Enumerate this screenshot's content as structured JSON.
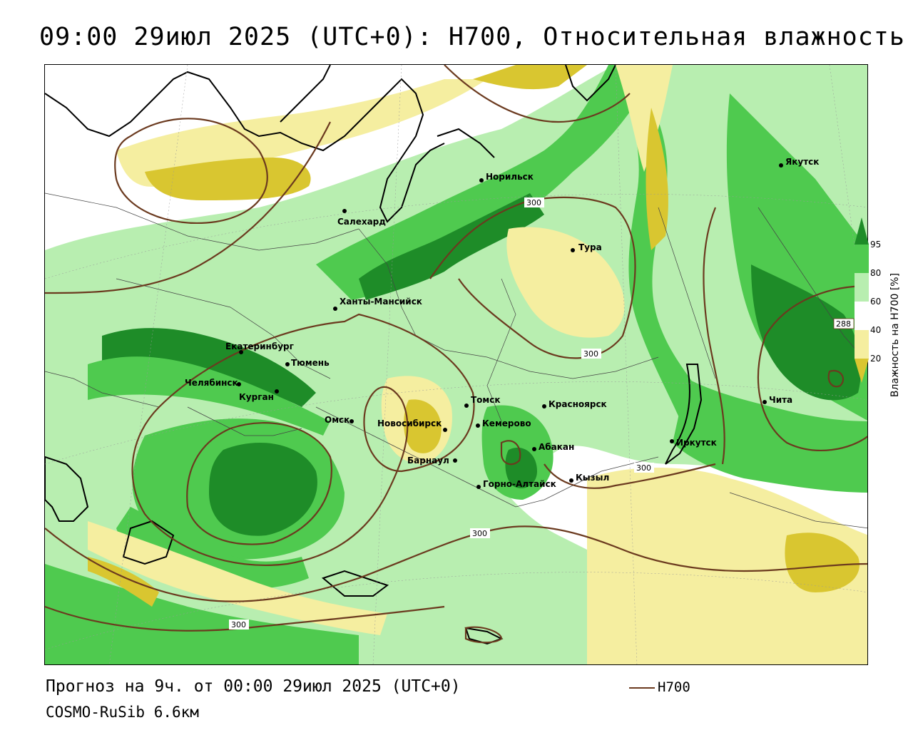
{
  "title": "09:00 29июл 2025 (UTC+0): H700, Относительная влажность",
  "footer": {
    "forecast_line": "Прогноз на 9ч. от 00:00 29июл 2025 (UTC+0)",
    "model_line": "COSMO-RuSib 6.6км",
    "legend_label": "H700"
  },
  "colorbar": {
    "title": "Влажность на H700 [%]",
    "ticks": [
      "95",
      "80",
      "60",
      "40",
      "20"
    ],
    "colors": {
      "gt95": "#1e8c28",
      "c80_95": "#4fca4f",
      "c60_80": "#b8eeb0",
      "c40_60": "#ffffff",
      "c20_40": "#f5eea0",
      "lt20": "#d9c630"
    }
  },
  "contour_color": "#6b3a1f",
  "contour_labels": [
    "300",
    "300",
    "300",
    "300",
    "300",
    "288"
  ],
  "cities": [
    {
      "name": "Норильск"
    },
    {
      "name": "Якутск"
    },
    {
      "name": "Салехард"
    },
    {
      "name": "Тура"
    },
    {
      "name": "Ханты-Мансийск"
    },
    {
      "name": "Екатеринбург"
    },
    {
      "name": "Тюмень"
    },
    {
      "name": "Челябинск"
    },
    {
      "name": "Курган"
    },
    {
      "name": "Омск"
    },
    {
      "name": "Томск"
    },
    {
      "name": "Красноярск"
    },
    {
      "name": "Новосибирск"
    },
    {
      "name": "Кемерово"
    },
    {
      "name": "Абакан"
    },
    {
      "name": "Барнаул"
    },
    {
      "name": "Горно-Алтайск"
    },
    {
      "name": "Кызыл"
    },
    {
      "name": "Иркутск"
    },
    {
      "name": "Чита"
    }
  ]
}
